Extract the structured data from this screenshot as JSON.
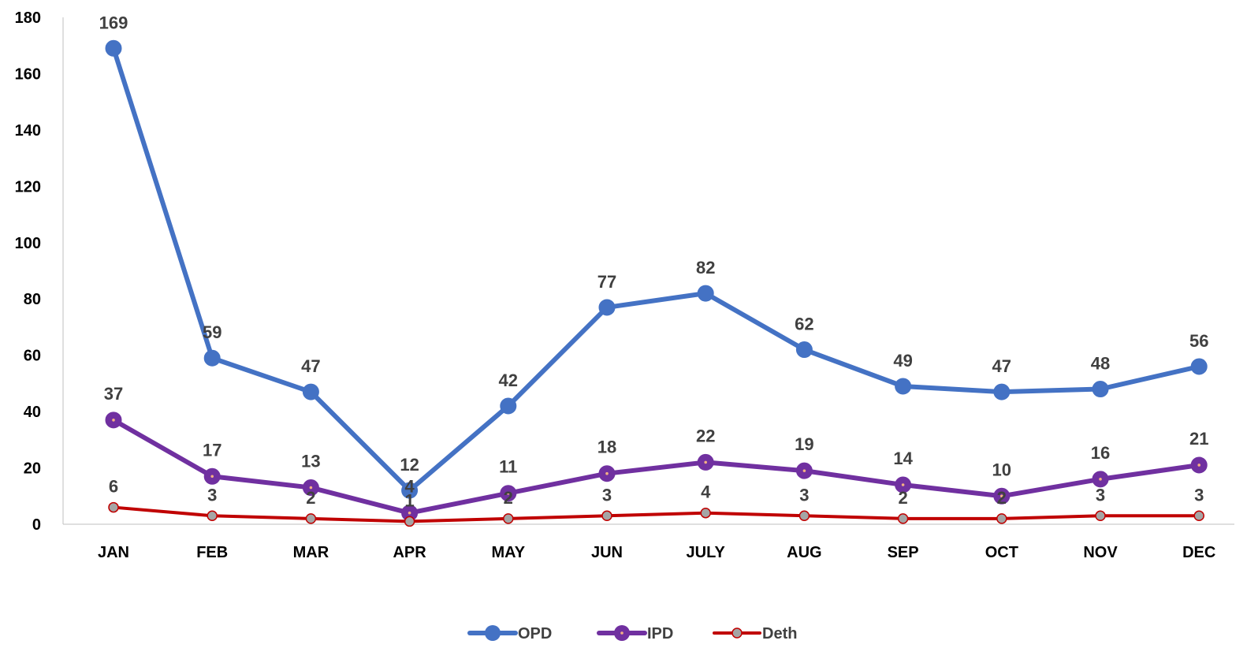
{
  "chart_data": {
    "type": "line",
    "categories": [
      "JAN",
      "FEB",
      "MAR",
      "APR",
      "MAY",
      "JUN",
      "JULY",
      "AUG",
      "SEP",
      "OCT",
      "NOV",
      "DEC"
    ],
    "series": [
      {
        "name": "OPD",
        "color": "#4472C4",
        "marker": "circle",
        "values": [
          169,
          59,
          47,
          12,
          42,
          77,
          82,
          62,
          49,
          47,
          48,
          56
        ]
      },
      {
        "name": "IPD",
        "color": "#7030A0",
        "marker": "circle",
        "values": [
          37,
          17,
          13,
          4,
          11,
          18,
          22,
          19,
          14,
          10,
          16,
          21
        ]
      },
      {
        "name": "Deth",
        "color": "#C00000",
        "marker": "circle-grey",
        "values": [
          6,
          3,
          2,
          1,
          2,
          3,
          4,
          3,
          2,
          2,
          3,
          3
        ]
      }
    ],
    "ylim": [
      0,
      180
    ],
    "yticks": [
      0,
      20,
      40,
      60,
      80,
      100,
      120,
      140,
      160,
      180
    ],
    "grid": false,
    "data_labels": true,
    "legend_position": "bottom"
  }
}
